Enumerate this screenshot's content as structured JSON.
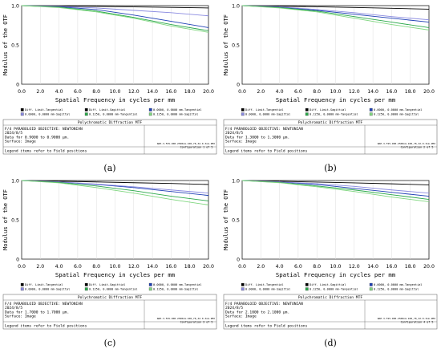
{
  "common": {
    "ylabel": "Modulus of the OTF",
    "xlabel": "Spatial Frequency in cycles per mm",
    "x_ticks": [
      "0.0",
      "2.0",
      "4.0",
      "6.0",
      "8.0",
      "10.0",
      "12.0",
      "14.0",
      "16.0",
      "18.0",
      "20.0"
    ],
    "y_ticks": [
      "1.0",
      "0.5",
      "0"
    ],
    "legend": [
      "Diff. Limit-Tangential",
      "Diff. Limit-Sagittial",
      "0.0000, 0.0000 mm-Tangential",
      "0.0000, 0.0000 mm-Sagittal",
      "0.1250, 0.0000 mm-Tangential",
      "0.1250, 0.0000 mm-Sagittal"
    ],
    "legend_colors": [
      "#000000",
      "#000000",
      "#1f3fb5",
      "#8a8ae0",
      "#2aa84a",
      "#7fd67f"
    ],
    "box_title": "Polychromatic Diffraction MTF",
    "box_line1": "F/4 PARABOLOID OBJECTIVE: NEWTONIAN",
    "box_date": "2024/8/5",
    "box_surface": "Surface: Image",
    "box_footer": "Legend items refer to Field positions",
    "box_file": "NAE-3-F45-900-2500nm-108_78_32-0.3nm.ZMX"
  },
  "panels": [
    {
      "caption": "(a)",
      "data_for": "Data for 0.9000 to 0.9000 μm.",
      "config": "Configuration 1 of 5"
    },
    {
      "caption": "(b)",
      "data_for": "Data for 1.3000 to 1.3000 μm.",
      "config": "Configuration 2 of 5"
    },
    {
      "caption": "(c)",
      "data_for": "Data for 1.7000 to 1.7000 μm.",
      "config": "Configuration 3 of 5"
    },
    {
      "caption": "(d)",
      "data_for": "Data for 2.1000 to 2.1000 μm.",
      "config": "Configuration 4 of 5"
    }
  ],
  "chart_data": [
    {
      "type": "line",
      "xlabel": "Spatial Frequency in cycles per mm",
      "ylabel": "Modulus of the OTF",
      "xlim": [
        0,
        20
      ],
      "ylim": [
        0,
        1
      ],
      "x": [
        0,
        4,
        8,
        12,
        16,
        20
      ],
      "series": [
        {
          "name": "Diff. Limit-Tangential",
          "values": [
            1.0,
            0.995,
            0.99,
            0.984,
            0.978,
            0.97
          ]
        },
        {
          "name": "0.0000, 0.0000 mm-Tangential",
          "values": [
            1.0,
            0.985,
            0.95,
            0.88,
            0.8,
            0.72
          ]
        },
        {
          "name": "0.0000, 0.0000 mm-Sagittal",
          "values": [
            1.0,
            0.99,
            0.97,
            0.94,
            0.91,
            0.87
          ]
        },
        {
          "name": "0.1250, 0.0000 mm-Tangential",
          "values": [
            1.0,
            0.98,
            0.93,
            0.85,
            0.76,
            0.68
          ]
        },
        {
          "name": "0.1250, 0.0000 mm-Sagittal",
          "values": [
            1.0,
            0.975,
            0.92,
            0.84,
            0.74,
            0.66
          ]
        }
      ]
    },
    {
      "type": "line",
      "xlabel": "Spatial Frequency in cycles per mm",
      "ylabel": "Modulus of the OTF",
      "xlim": [
        0,
        20
      ],
      "ylim": [
        0,
        1
      ],
      "x": [
        0,
        4,
        8,
        12,
        16,
        20
      ],
      "series": [
        {
          "name": "Diff. Limit-Tangential",
          "values": [
            1.0,
            0.993,
            0.985,
            0.976,
            0.966,
            0.955
          ]
        },
        {
          "name": "0.0000, 0.0000 mm-Tangential",
          "values": [
            1.0,
            0.98,
            0.94,
            0.89,
            0.84,
            0.79
          ]
        },
        {
          "name": "0.0000, 0.0000 mm-Sagittal",
          "values": [
            1.0,
            0.985,
            0.95,
            0.91,
            0.86,
            0.82
          ]
        },
        {
          "name": "0.1250, 0.0000 mm-Tangential",
          "values": [
            1.0,
            0.975,
            0.93,
            0.86,
            0.79,
            0.72
          ]
        },
        {
          "name": "0.1250, 0.0000 mm-Sagittal",
          "values": [
            1.0,
            0.97,
            0.92,
            0.84,
            0.76,
            0.69
          ]
        }
      ]
    },
    {
      "type": "line",
      "xlabel": "Spatial Frequency in cycles per mm",
      "ylabel": "Modulus of the OTF",
      "xlim": [
        0,
        20
      ],
      "ylim": [
        0,
        1
      ],
      "x": [
        0,
        4,
        8,
        12,
        16,
        20
      ],
      "series": [
        {
          "name": "Diff. Limit-Tangential",
          "values": [
            1.0,
            0.991,
            0.982,
            0.972,
            0.962,
            0.95
          ]
        },
        {
          "name": "0.0000, 0.0000 mm-Tangential",
          "values": [
            1.0,
            0.98,
            0.95,
            0.91,
            0.86,
            0.81
          ]
        },
        {
          "name": "0.0000, 0.0000 mm-Sagittal",
          "values": [
            1.0,
            0.982,
            0.955,
            0.92,
            0.88,
            0.84
          ]
        },
        {
          "name": "0.1250, 0.0000 mm-Tangential",
          "values": [
            1.0,
            0.975,
            0.93,
            0.87,
            0.8,
            0.74
          ]
        },
        {
          "name": "0.1250, 0.0000 mm-Sagittal",
          "values": [
            1.0,
            0.97,
            0.91,
            0.84,
            0.76,
            0.69
          ]
        }
      ]
    },
    {
      "type": "line",
      "xlabel": "Spatial Frequency in cycles per mm",
      "ylabel": "Modulus of the OTF",
      "xlim": [
        0,
        20
      ],
      "ylim": [
        0,
        1
      ],
      "x": [
        0,
        4,
        8,
        12,
        16,
        20
      ],
      "series": [
        {
          "name": "Diff. Limit-Tangential",
          "values": [
            1.0,
            0.99,
            0.98,
            0.97,
            0.958,
            0.945
          ]
        },
        {
          "name": "0.0000, 0.0000 mm-Tangential",
          "values": [
            1.0,
            0.98,
            0.95,
            0.9,
            0.85,
            0.8
          ]
        },
        {
          "name": "0.0000, 0.0000 mm-Sagittal",
          "values": [
            1.0,
            0.983,
            0.96,
            0.925,
            0.88,
            0.84
          ]
        },
        {
          "name": "0.1250, 0.0000 mm-Tangential",
          "values": [
            1.0,
            0.975,
            0.93,
            0.88,
            0.82,
            0.76
          ]
        },
        {
          "name": "0.1250, 0.0000 mm-Sagittal",
          "values": [
            1.0,
            0.972,
            0.92,
            0.86,
            0.79,
            0.73
          ]
        }
      ]
    }
  ]
}
